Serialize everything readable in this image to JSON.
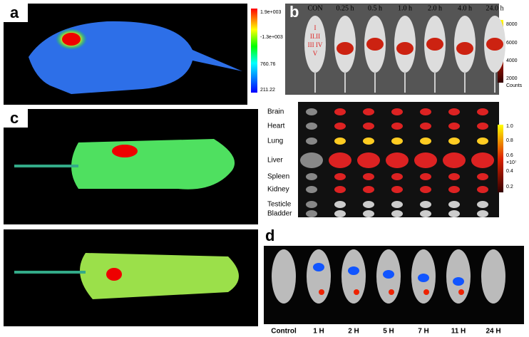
{
  "panels": {
    "a": {
      "label": "a",
      "colorbar": [
        "1.9e+003",
        "-1.3e+003",
        "760.76",
        "211.22"
      ]
    },
    "b": {
      "label": "b",
      "timepoints": [
        "CON",
        "0.25 h",
        "0.5 h",
        "1.0 h",
        "2.0 h",
        "4.0 h",
        "24.0 h"
      ],
      "regions": [
        "I",
        "II.II",
        "III IV",
        "V"
      ],
      "colorbar": [
        "8000",
        "6000",
        "4000",
        "2000"
      ],
      "unit": "Counts"
    },
    "organs": {
      "names": [
        "Brain",
        "Heart",
        "Lung",
        "Liver",
        "Spleen",
        "Kidney",
        "Testicle",
        "Bladder"
      ],
      "colorbar": [
        "1.0",
        "0.8",
        "0.6",
        "0.4",
        "0.2"
      ],
      "scale": "×10⁷"
    },
    "c": {
      "label": "c"
    },
    "d": {
      "label": "d",
      "timepoints": [
        "Control",
        "1 H",
        "2 H",
        "5 H",
        "7 H",
        "11 H",
        "24 H"
      ]
    }
  }
}
